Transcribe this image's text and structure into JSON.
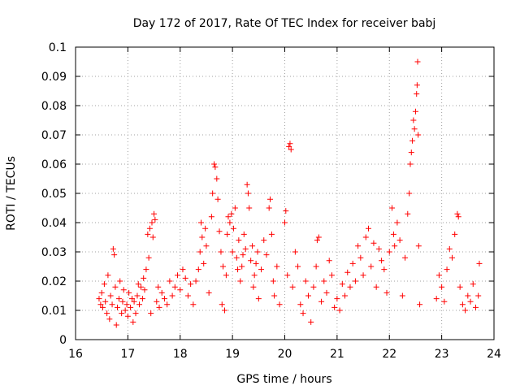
{
  "chart_data": {
    "type": "scatter",
    "title": "Day 172 of 2017, Rate Of TEC Index for receiver babj",
    "xlabel": "GPS time / hours",
    "ylabel": "ROTI / TECUs",
    "xlim": [
      16,
      24
    ],
    "ylim": [
      0,
      0.1
    ],
    "xticks": [
      "16",
      "17",
      "18",
      "19",
      "20",
      "21",
      "22",
      "23",
      "24"
    ],
    "yticks": [
      "0",
      "0.01",
      "0.02",
      "0.03",
      "0.04",
      "0.05",
      "0.06",
      "0.07",
      "0.08",
      "0.09",
      "0.1"
    ],
    "grid": true,
    "marker": "plus",
    "color": "#ff0000",
    "series": [
      {
        "name": "ROTI",
        "points": [
          [
            16.45,
            0.014
          ],
          [
            16.48,
            0.012
          ],
          [
            16.5,
            0.016
          ],
          [
            16.52,
            0.011
          ],
          [
            16.55,
            0.019
          ],
          [
            16.57,
            0.013
          ],
          [
            16.6,
            0.009
          ],
          [
            16.62,
            0.022
          ],
          [
            16.65,
            0.007
          ],
          [
            16.67,
            0.015
          ],
          [
            16.7,
            0.012
          ],
          [
            16.72,
            0.031
          ],
          [
            16.74,
            0.029
          ],
          [
            16.76,
            0.018
          ],
          [
            16.78,
            0.005
          ],
          [
            16.8,
            0.011
          ],
          [
            16.83,
            0.014
          ],
          [
            16.85,
            0.02
          ],
          [
            16.88,
            0.009
          ],
          [
            16.9,
            0.013
          ],
          [
            16.92,
            0.017
          ],
          [
            16.95,
            0.01
          ],
          [
            16.98,
            0.012
          ],
          [
            17.0,
            0.008
          ],
          [
            17.02,
            0.016
          ],
          [
            17.05,
            0.011
          ],
          [
            17.08,
            0.014
          ],
          [
            17.1,
            0.006
          ],
          [
            17.12,
            0.013
          ],
          [
            17.15,
            0.009
          ],
          [
            17.18,
            0.015
          ],
          [
            17.2,
            0.019
          ],
          [
            17.22,
            0.012
          ],
          [
            17.25,
            0.018
          ],
          [
            17.28,
            0.014
          ],
          [
            17.3,
            0.021
          ],
          [
            17.32,
            0.017
          ],
          [
            17.35,
            0.024
          ],
          [
            17.38,
            0.036
          ],
          [
            17.4,
            0.028
          ],
          [
            17.42,
            0.038
          ],
          [
            17.44,
            0.009
          ],
          [
            17.46,
            0.04
          ],
          [
            17.48,
            0.035
          ],
          [
            17.5,
            0.043
          ],
          [
            17.52,
            0.041
          ],
          [
            17.55,
            0.013
          ],
          [
            17.58,
            0.018
          ],
          [
            17.6,
            0.011
          ],
          [
            17.65,
            0.016
          ],
          [
            17.7,
            0.014
          ],
          [
            17.75,
            0.012
          ],
          [
            17.8,
            0.02
          ],
          [
            17.85,
            0.015
          ],
          [
            17.9,
            0.018
          ],
          [
            17.95,
            0.022
          ],
          [
            18.0,
            0.017
          ],
          [
            18.05,
            0.024
          ],
          [
            18.1,
            0.021
          ],
          [
            18.15,
            0.015
          ],
          [
            18.2,
            0.019
          ],
          [
            18.25,
            0.012
          ],
          [
            18.3,
            0.02
          ],
          [
            18.35,
            0.024
          ],
          [
            18.38,
            0.03
          ],
          [
            18.4,
            0.04
          ],
          [
            18.42,
            0.035
          ],
          [
            18.45,
            0.026
          ],
          [
            18.48,
            0.038
          ],
          [
            18.5,
            0.032
          ],
          [
            18.55,
            0.016
          ],
          [
            18.6,
            0.042
          ],
          [
            18.62,
            0.05
          ],
          [
            18.65,
            0.06
          ],
          [
            18.67,
            0.059
          ],
          [
            18.7,
            0.055
          ],
          [
            18.72,
            0.048
          ],
          [
            18.75,
            0.037
          ],
          [
            18.78,
            0.03
          ],
          [
            18.8,
            0.012
          ],
          [
            18.82,
            0.025
          ],
          [
            18.85,
            0.01
          ],
          [
            18.88,
            0.022
          ],
          [
            18.9,
            0.036
          ],
          [
            18.92,
            0.042
          ],
          [
            18.95,
            0.04
          ],
          [
            18.98,
            0.043
          ],
          [
            19.0,
            0.03
          ],
          [
            19.02,
            0.038
          ],
          [
            19.05,
            0.045
          ],
          [
            19.08,
            0.028
          ],
          [
            19.1,
            0.024
          ],
          [
            19.12,
            0.034
          ],
          [
            19.15,
            0.02
          ],
          [
            19.18,
            0.025
          ],
          [
            19.2,
            0.029
          ],
          [
            19.22,
            0.036
          ],
          [
            19.25,
            0.031
          ],
          [
            19.28,
            0.053
          ],
          [
            19.3,
            0.05
          ],
          [
            19.32,
            0.045
          ],
          [
            19.35,
            0.027
          ],
          [
            19.38,
            0.032
          ],
          [
            19.4,
            0.018
          ],
          [
            19.42,
            0.022
          ],
          [
            19.45,
            0.026
          ],
          [
            19.48,
            0.03
          ],
          [
            19.5,
            0.014
          ],
          [
            19.55,
            0.024
          ],
          [
            19.6,
            0.034
          ],
          [
            19.65,
            0.029
          ],
          [
            19.7,
            0.045
          ],
          [
            19.72,
            0.048
          ],
          [
            19.75,
            0.036
          ],
          [
            19.78,
            0.02
          ],
          [
            19.8,
            0.015
          ],
          [
            19.85,
            0.025
          ],
          [
            19.9,
            0.012
          ],
          [
            20.0,
            0.04
          ],
          [
            20.02,
            0.044
          ],
          [
            20.05,
            0.022
          ],
          [
            20.08,
            0.066
          ],
          [
            20.1,
            0.067
          ],
          [
            20.12,
            0.065
          ],
          [
            20.15,
            0.018
          ],
          [
            20.2,
            0.03
          ],
          [
            20.25,
            0.025
          ],
          [
            20.3,
            0.012
          ],
          [
            20.35,
            0.009
          ],
          [
            20.4,
            0.02
          ],
          [
            20.45,
            0.015
          ],
          [
            20.5,
            0.006
          ],
          [
            20.55,
            0.018
          ],
          [
            20.6,
            0.025
          ],
          [
            20.62,
            0.034
          ],
          [
            20.65,
            0.035
          ],
          [
            20.7,
            0.013
          ],
          [
            20.75,
            0.02
          ],
          [
            20.8,
            0.016
          ],
          [
            20.85,
            0.027
          ],
          [
            20.9,
            0.022
          ],
          [
            20.95,
            0.011
          ],
          [
            21.0,
            0.014
          ],
          [
            21.05,
            0.01
          ],
          [
            21.1,
            0.019
          ],
          [
            21.15,
            0.015
          ],
          [
            21.2,
            0.023
          ],
          [
            21.25,
            0.018
          ],
          [
            21.3,
            0.026
          ],
          [
            21.35,
            0.02
          ],
          [
            21.4,
            0.032
          ],
          [
            21.45,
            0.028
          ],
          [
            21.5,
            0.022
          ],
          [
            21.55,
            0.035
          ],
          [
            21.6,
            0.038
          ],
          [
            21.65,
            0.025
          ],
          [
            21.7,
            0.033
          ],
          [
            21.75,
            0.018
          ],
          [
            21.8,
            0.031
          ],
          [
            21.85,
            0.027
          ],
          [
            21.9,
            0.024
          ],
          [
            21.95,
            0.016
          ],
          [
            22.0,
            0.03
          ],
          [
            22.05,
            0.045
          ],
          [
            22.08,
            0.036
          ],
          [
            22.1,
            0.032
          ],
          [
            22.15,
            0.04
          ],
          [
            22.2,
            0.034
          ],
          [
            22.25,
            0.015
          ],
          [
            22.3,
            0.028
          ],
          [
            22.35,
            0.043
          ],
          [
            22.38,
            0.05
          ],
          [
            22.4,
            0.06
          ],
          [
            22.42,
            0.064
          ],
          [
            22.44,
            0.068
          ],
          [
            22.46,
            0.075
          ],
          [
            22.48,
            0.072
          ],
          [
            22.5,
            0.078
          ],
          [
            22.52,
            0.084
          ],
          [
            22.53,
            0.087
          ],
          [
            22.54,
            0.095
          ],
          [
            22.55,
            0.07
          ],
          [
            22.56,
            0.032
          ],
          [
            22.58,
            0.012
          ],
          [
            22.9,
            0.014
          ],
          [
            22.95,
            0.022
          ],
          [
            23.0,
            0.018
          ],
          [
            23.05,
            0.013
          ],
          [
            23.1,
            0.024
          ],
          [
            23.15,
            0.031
          ],
          [
            23.2,
            0.028
          ],
          [
            23.25,
            0.036
          ],
          [
            23.3,
            0.043
          ],
          [
            23.32,
            0.042
          ],
          [
            23.35,
            0.018
          ],
          [
            23.4,
            0.012
          ],
          [
            23.45,
            0.01
          ],
          [
            23.5,
            0.015
          ],
          [
            23.55,
            0.013
          ],
          [
            23.6,
            0.019
          ],
          [
            23.65,
            0.011
          ],
          [
            23.7,
            0.015
          ],
          [
            23.72,
            0.026
          ]
        ]
      }
    ]
  }
}
